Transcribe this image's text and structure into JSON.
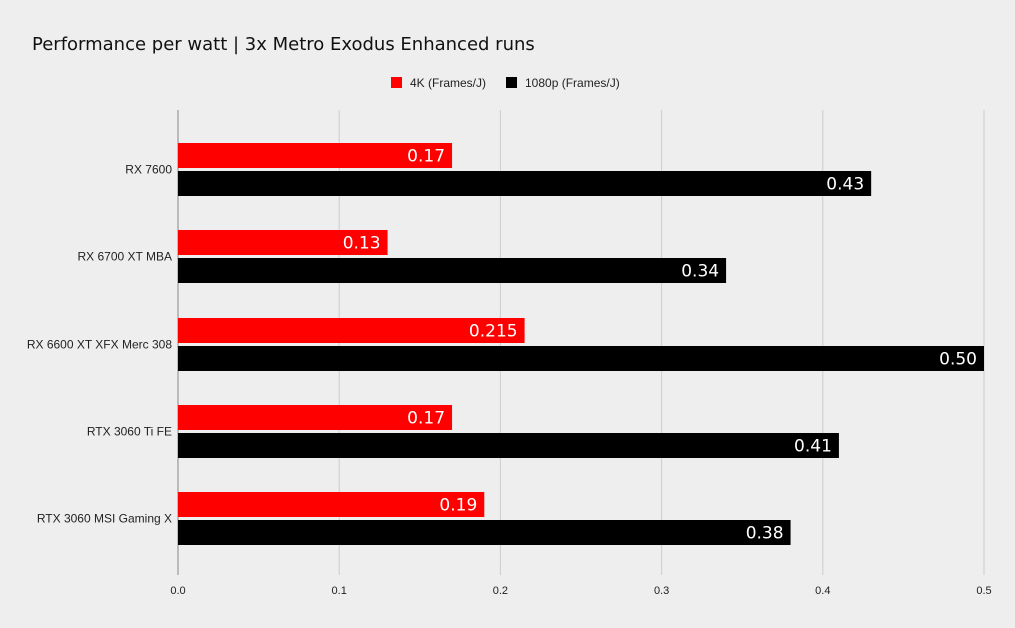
{
  "chart_data": {
    "type": "bar",
    "orientation": "horizontal",
    "title": "Performance per watt | 3x Metro Exodus Enhanced runs",
    "xlabel": "",
    "ylabel": "",
    "categories": [
      "RX 7600",
      "RX 6700 XT MBA",
      "RX 6600 XT XFX Merc 308",
      "RTX 3060 Ti FE",
      "RTX 3060 MSI Gaming X"
    ],
    "series": [
      {
        "name": "4K (Frames/J)",
        "color": "#ff0000",
        "values": [
          0.17,
          0.13,
          0.215,
          0.17,
          0.19
        ],
        "labels": [
          "0.17",
          "0.13",
          "0.215",
          "0.17",
          "0.19"
        ]
      },
      {
        "name": "1080p (Frames/J)",
        "color": "#000000",
        "values": [
          0.43,
          0.34,
          0.5,
          0.41,
          0.38
        ],
        "labels": [
          "0.43",
          "0.34",
          "0.50",
          "0.41",
          "0.38"
        ]
      }
    ],
    "xlim": [
      0,
      0.5
    ],
    "xticks": [
      0,
      0.1,
      0.2,
      0.3,
      0.4,
      0.5
    ],
    "xtick_labels": [
      "0.0",
      "0.1",
      "0.2",
      "0.3",
      "0.4",
      "0.5"
    ],
    "grid": "vertical",
    "legend_position": "top-center",
    "background_color": "#eeeeee",
    "grid_color": "#cccccc"
  }
}
